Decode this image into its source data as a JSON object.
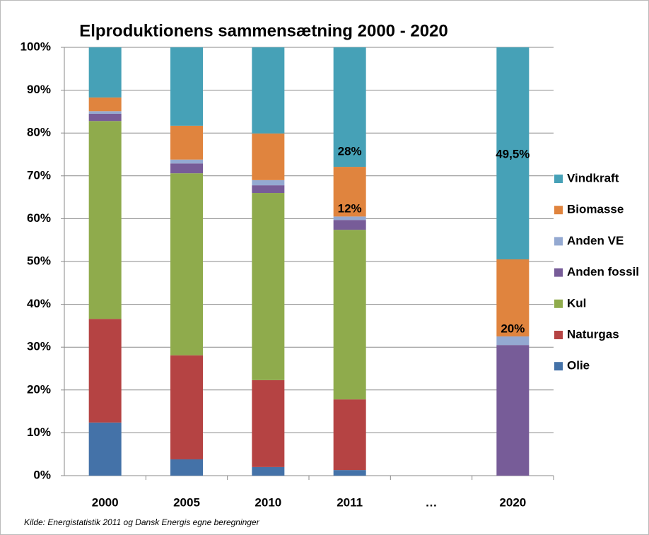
{
  "chart_data": {
    "type": "stacked_bar",
    "title": "Elproduktionens sammensætning 2000 - 2020",
    "source": "Kilde: Energistatistik 2011 og Dansk Energis egne beregninger",
    "categories": [
      "2000",
      "2005",
      "2010",
      "2011",
      "…",
      "2020"
    ],
    "series": [
      {
        "name": "Olie",
        "color": "#4472a8",
        "values": [
          12.4,
          3.8,
          2.0,
          1.3,
          null,
          0
        ]
      },
      {
        "name": "Naturgas",
        "color": "#b54343",
        "values": [
          24.2,
          24.3,
          20.3,
          16.5,
          null,
          0
        ]
      },
      {
        "name": "Kul",
        "color": "#8fab4c",
        "values": [
          46.2,
          42.5,
          43.7,
          39.6,
          null,
          0
        ]
      },
      {
        "name": "Anden fossil",
        "color": "#775c98",
        "values": [
          1.7,
          2.3,
          1.8,
          2.3,
          null,
          30.5
        ]
      },
      {
        "name": "Anden VE",
        "color": "#94a9d1",
        "values": [
          0.6,
          0.9,
          1.2,
          0.8,
          null,
          2.0
        ]
      },
      {
        "name": "Biomasse",
        "color": "#e0843e",
        "values": [
          3.2,
          7.9,
          10.9,
          11.6,
          null,
          18.0
        ]
      },
      {
        "name": "Vindkraft",
        "color": "#46a1b7",
        "values": [
          11.7,
          18.3,
          20.1,
          27.9,
          null,
          49.5
        ]
      }
    ],
    "annotations": [
      "28%",
      "12%",
      "49,5%",
      "20%"
    ],
    "ylim": [
      0,
      100
    ],
    "yticks": [
      {
        "value": 0,
        "label": "0%"
      },
      {
        "value": 10,
        "label": "10%"
      },
      {
        "value": 20,
        "label": "20%"
      },
      {
        "value": 30,
        "label": "30%"
      },
      {
        "value": 40,
        "label": "40%"
      },
      {
        "value": 50,
        "label": "50%"
      },
      {
        "value": 60,
        "label": "60%"
      },
      {
        "value": 70,
        "label": "70%"
      },
      {
        "value": 80,
        "label": "80%"
      },
      {
        "value": 90,
        "label": "90%"
      },
      {
        "value": 100,
        "label": "100%"
      }
    ],
    "grid": true,
    "legend": "right"
  }
}
